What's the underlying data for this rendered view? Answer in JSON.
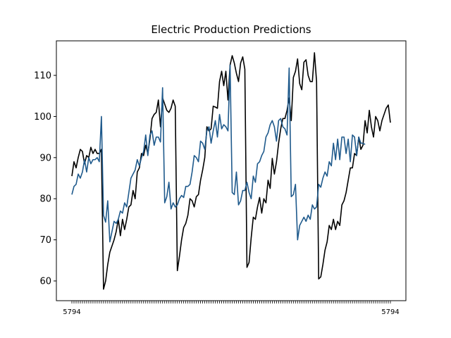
{
  "chart_data": {
    "type": "line",
    "title": "Electric Production Predictions",
    "xlabel": "",
    "ylabel": "",
    "ylim": [
      55.2,
      118.4
    ],
    "yticks": [
      60,
      70,
      80,
      90,
      100,
      110
    ],
    "grid": false,
    "legend": "none",
    "x_tick_label_text": "5794",
    "series": [
      {
        "color": "#000000",
        "values": [
          85.5,
          89,
          87.5,
          90,
          92,
          91.5,
          88.5,
          90.5,
          90,
          92.5,
          91,
          92,
          91,
          91,
          92,
          58,
          60,
          64,
          67,
          68.5,
          70,
          72,
          75,
          71,
          75,
          72.5,
          75,
          78,
          78.5,
          82,
          80,
          86.5,
          87.5,
          91,
          90.5,
          93,
          91,
          94.5,
          99.5,
          100.5,
          101,
          104,
          97.5,
          104.5,
          103,
          101.5,
          101,
          102,
          104,
          102.5,
          62.5,
          66,
          70,
          73,
          74,
          76,
          80,
          79.5,
          78,
          80.5,
          81,
          84.5,
          87,
          90,
          97.5,
          96.5,
          97,
          102.5,
          102.3,
          102,
          108.5,
          111,
          107.5,
          111,
          104,
          112.5,
          114.8,
          113,
          110.5,
          108.5,
          113,
          114.5,
          111.5,
          63.3,
          64.5,
          70.5,
          75.5,
          75,
          78,
          80.3,
          76.5,
          80,
          79,
          84.5,
          82.5,
          89.8,
          86,
          89,
          93.5,
          97,
          99.5,
          99.5,
          101.5,
          104.5,
          99,
          109.5,
          111,
          114,
          108,
          106.5,
          113.2,
          113.8,
          110,
          108.5,
          108.5,
          115.5,
          108.5,
          60.5,
          61,
          64,
          67.5,
          69.5,
          73.5,
          72.5,
          75,
          72.5,
          74.5,
          73.5,
          78.5,
          79.5,
          81.5,
          84.5,
          87.5,
          87.5,
          91,
          90.5,
          95,
          92,
          93,
          99,
          96,
          101.5,
          97.5,
          95,
          100,
          99,
          96.5,
          99,
          100.5,
          102,
          102.8,
          98.5
        ]
      },
      {
        "color": "#1f5a8c",
        "values": [
          81,
          83,
          83.5,
          86,
          85,
          86.5,
          89.5,
          86.5,
          90,
          88.5,
          89.5,
          89.5,
          90,
          89,
          100,
          76,
          74.3,
          79.5,
          69.5,
          72,
          74.5,
          74,
          75,
          77,
          76.5,
          79,
          78,
          81.5,
          85,
          86,
          87,
          89.5,
          88,
          90,
          91.5,
          95.5,
          90.5,
          95.5,
          96.5,
          93,
          95,
          95,
          93.8,
          107,
          79,
          80.5,
          84,
          77.5,
          79,
          78,
          78.5,
          80,
          80.8,
          80.3,
          83,
          83,
          83.5,
          86.5,
          90.5,
          90,
          89,
          94,
          93.5,
          92,
          96.5,
          97.5,
          93.5,
          96.5,
          99,
          95,
          100.5,
          97,
          98,
          97.5,
          96.5,
          112.5,
          81.5,
          81,
          86.5,
          78.5,
          79.5,
          82,
          82,
          84,
          81.5,
          80,
          85.5,
          84,
          88.5,
          89,
          90.5,
          91.5,
          95,
          96,
          98,
          99,
          97.5,
          94,
          99,
          99.5,
          97.5,
          97,
          95.5,
          111.8,
          80.5,
          81,
          83.5,
          70,
          73.5,
          74.5,
          75.5,
          74.5,
          76,
          75,
          78.5,
          77.5,
          78,
          83.5,
          82.8,
          85,
          86.5,
          85.5,
          89,
          88,
          93.5,
          89.5,
          94.5,
          89.5,
          95,
          95,
          91,
          94.5,
          89,
          95.5,
          95,
          90.5,
          95,
          93.5,
          93.5,
          93.2
        ]
      }
    ]
  }
}
